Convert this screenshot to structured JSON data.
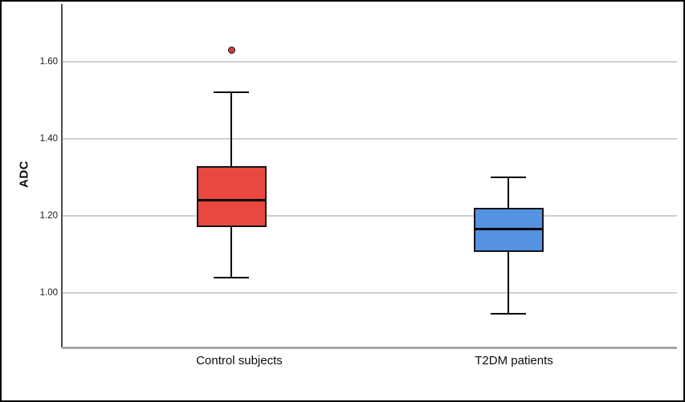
{
  "figure": {
    "background": "#ffffff",
    "border_color": "#000000"
  },
  "chart_data": {
    "type": "boxplot",
    "title": "",
    "xlabel": "",
    "ylabel": "ADC",
    "categories": [
      "Control subjects",
      "T2DM patients"
    ],
    "ylim": [
      0.858,
      1.75
    ],
    "yticks": [
      1.0,
      1.2,
      1.4,
      1.6
    ],
    "ytick_labels": [
      "1.00",
      "1.20",
      "1.40",
      "1.60"
    ],
    "grid": "horizontal gridlines at y ticks, drawn behind boxes",
    "legend": "none",
    "series": [
      {
        "name": "Control subjects",
        "whisker_low": 1.04,
        "q1": 1.17,
        "median": 1.24,
        "q3": 1.33,
        "whisker_high": 1.52,
        "outliers": [
          1.63
        ],
        "fill_color": "#e8483f"
      },
      {
        "name": "T2DM patients",
        "whisker_low": 0.945,
        "q1": 1.105,
        "median": 1.165,
        "q3": 1.22,
        "whisker_high": 1.3,
        "outliers": [],
        "fill_color": "#5592e2"
      }
    ],
    "colors": {
      "box_border": "#141414",
      "median_line": "#000000",
      "whisker": "#000000",
      "outlier_fill": "#cf3e3d",
      "outlier_border": "#1a0d0d",
      "gridline": "#cfcfcf",
      "y_axis_line": "#4d4d4d",
      "x_axis_line": "#a6a6a6",
      "text": "#111111"
    }
  }
}
